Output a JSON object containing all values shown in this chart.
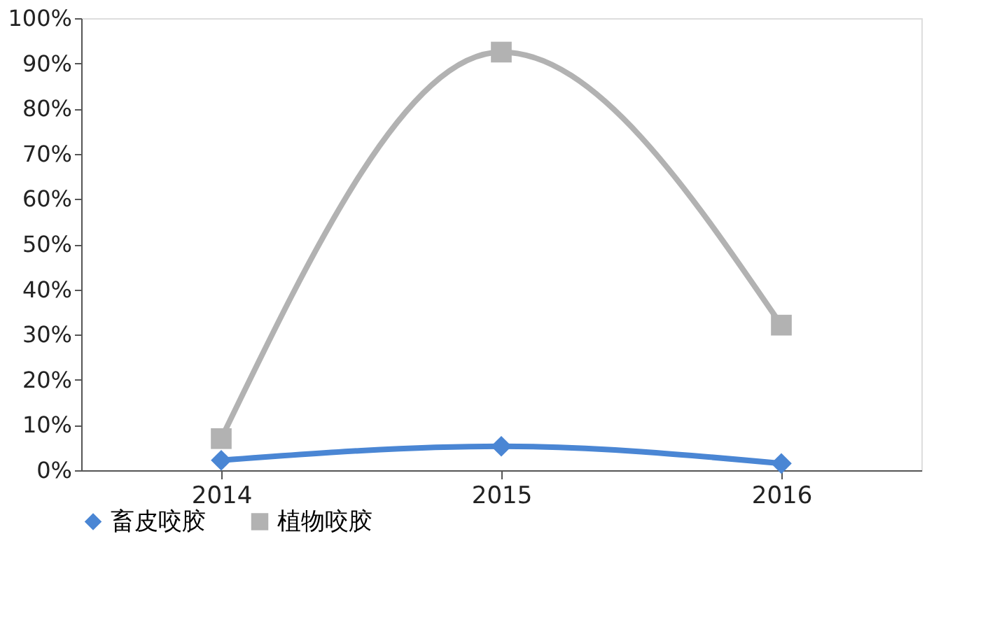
{
  "chart_data": {
    "type": "line",
    "categories": [
      "2014",
      "2015",
      "2016"
    ],
    "series": [
      {
        "name": "畜皮咬胶",
        "color": "#4a86d4",
        "marker": "diamond",
        "values": [
          2.2,
          5.3,
          1.5
        ]
      },
      {
        "name": "植物咬胶",
        "color": "#b2b2b2",
        "marker": "square",
        "values": [
          7.0,
          92.5,
          32.1
        ]
      }
    ],
    "ylim": [
      0,
      100
    ],
    "yticks": [
      {
        "value": 0,
        "label": "0%"
      },
      {
        "value": 10,
        "label": "10%"
      },
      {
        "value": 20,
        "label": "20%"
      },
      {
        "value": 30,
        "label": "30%"
      },
      {
        "value": 40,
        "label": "40%"
      },
      {
        "value": 50,
        "label": "50%"
      },
      {
        "value": 60,
        "label": "60%"
      },
      {
        "value": 70,
        "label": "70%"
      },
      {
        "value": 80,
        "label": "80%"
      },
      {
        "value": 90,
        "label": "90%"
      },
      {
        "value": 100,
        "label": "100%"
      }
    ],
    "grid": false,
    "legend": "bottom",
    "line_style": "solid"
  }
}
